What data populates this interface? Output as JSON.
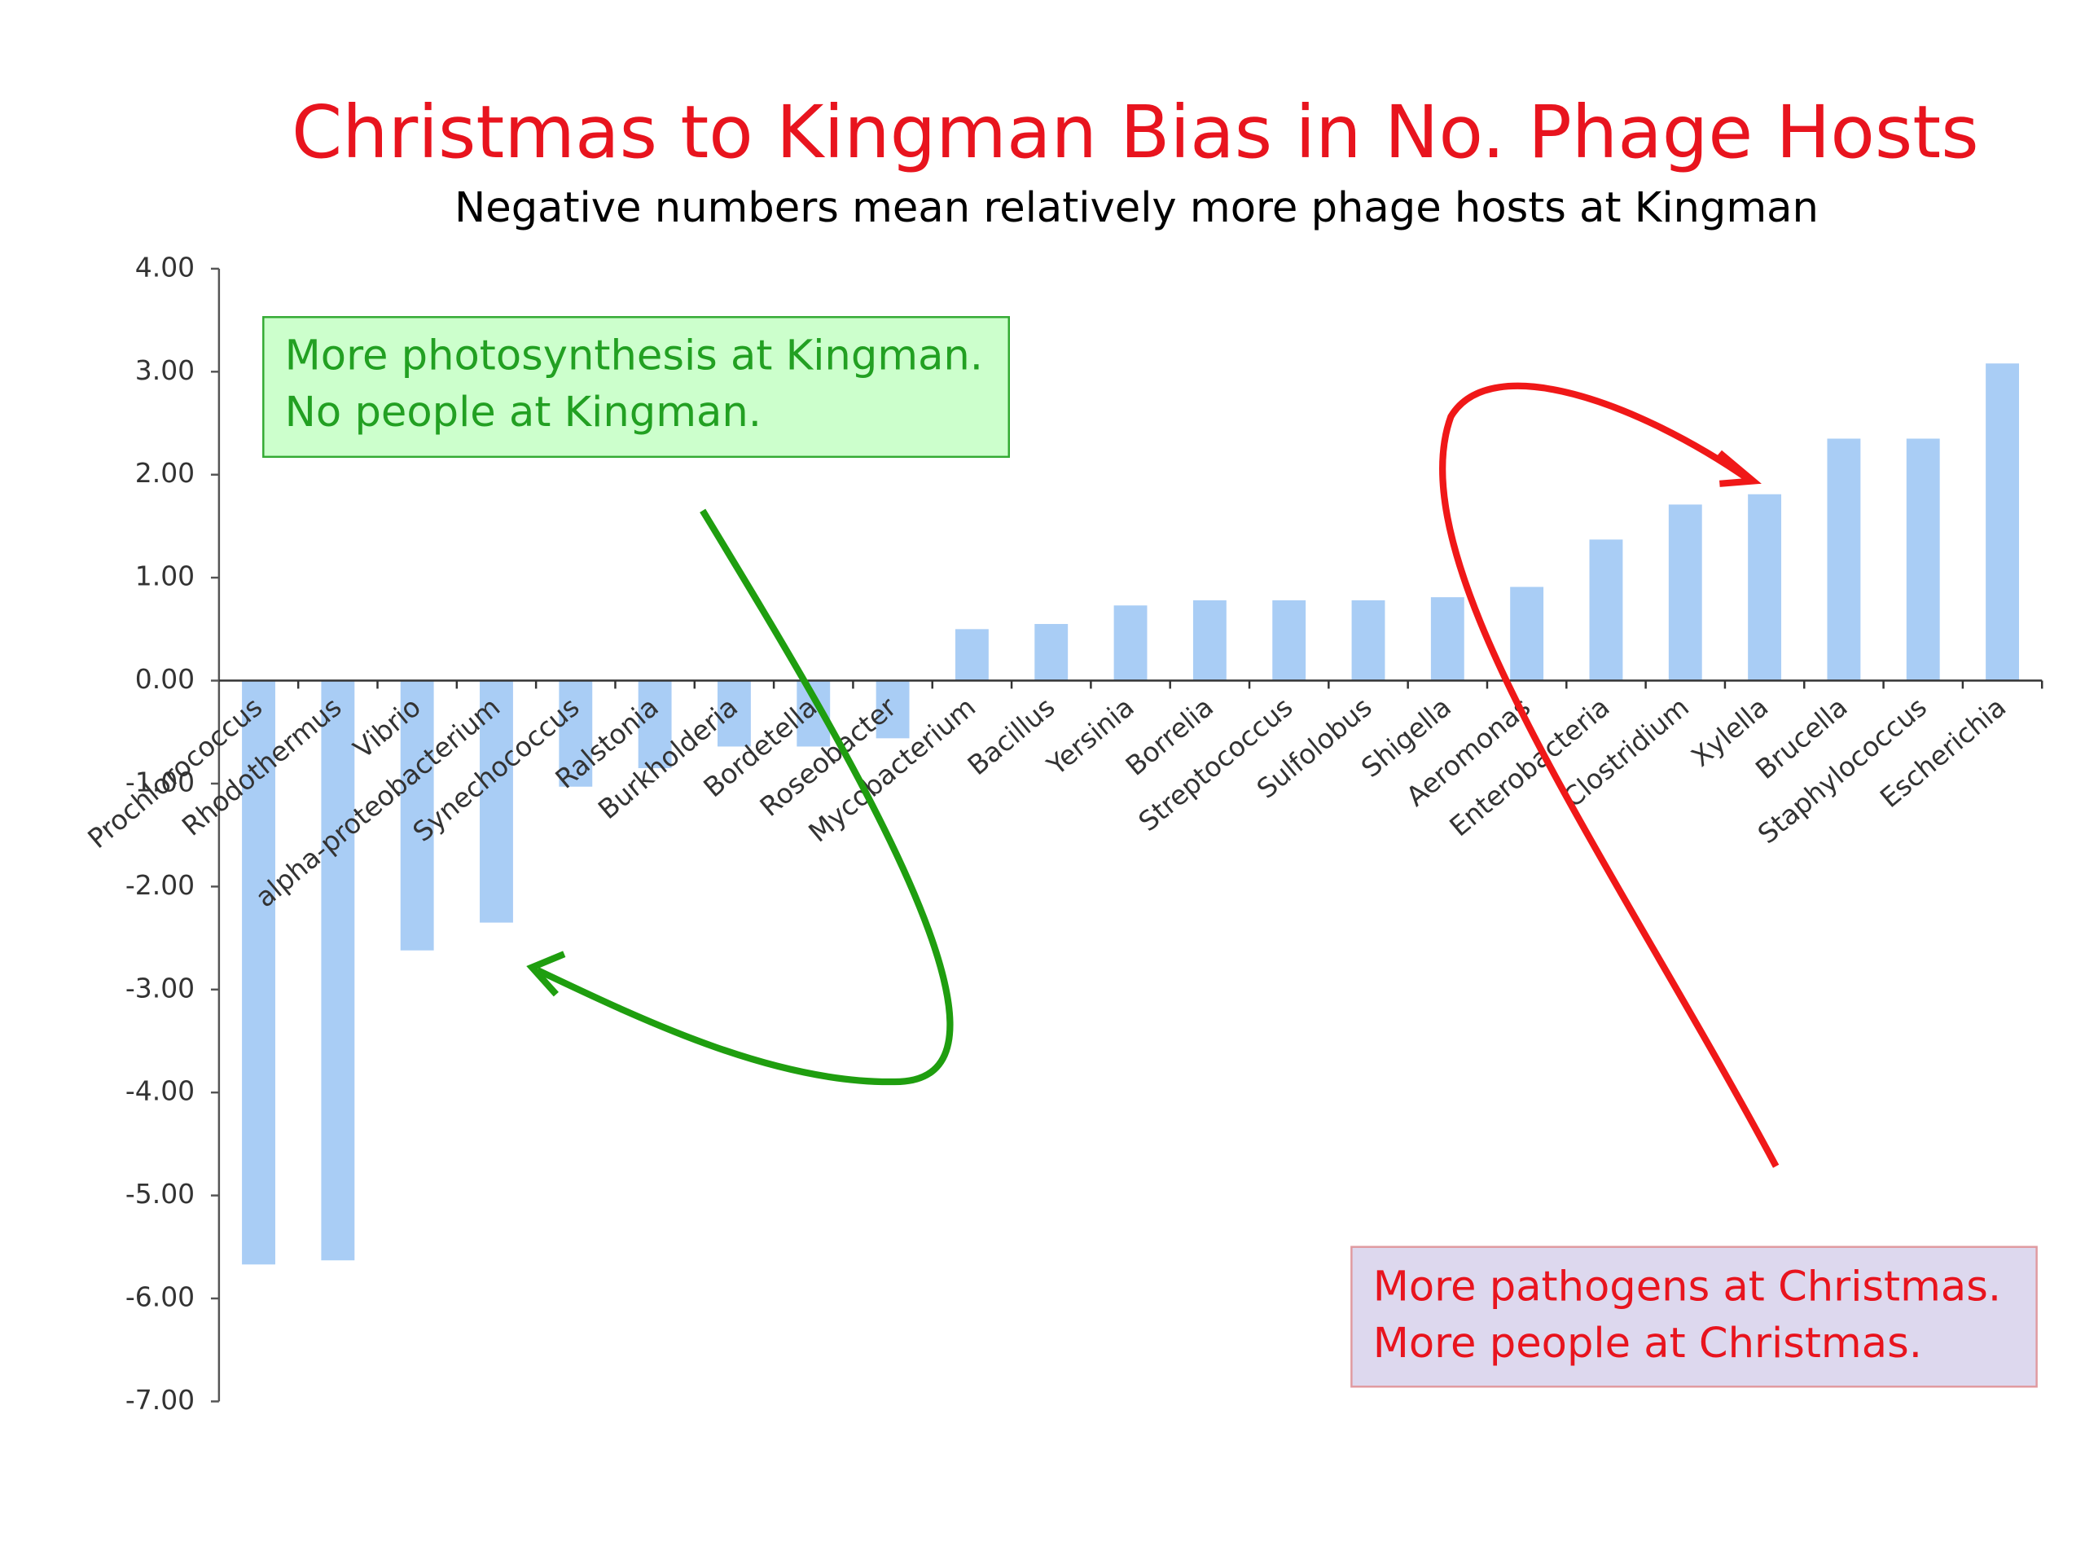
{
  "chart_data": {
    "type": "bar",
    "title": "Christmas to Kingman Bias in No. Phage Hosts",
    "subtitle": "Negative numbers mean relatively more phage hosts at Kingman",
    "categories": [
      "Prochlorococcus",
      "Rhodothermus",
      "Vibrio",
      "alpha-proteobacterium",
      "Synechococcus",
      "Ralstonia",
      "Burkholderia",
      "Bordetella",
      "Roseobacter",
      "Mycobacterium",
      "Bacillus",
      "Yersinia",
      "Borrelia",
      "Streptococcus",
      "Sulfolobus",
      "Shigella",
      "Aeromonas",
      "Enterobacteria",
      "Clostridium",
      "Xylella",
      "Brucella",
      "Staphylococcus",
      "Escherichia"
    ],
    "values": [
      -5.67,
      -5.63,
      -2.62,
      -2.35,
      -1.03,
      -0.85,
      -0.64,
      -0.64,
      -0.56,
      0.5,
      0.55,
      0.73,
      0.78,
      0.78,
      0.78,
      0.81,
      0.91,
      1.37,
      1.71,
      1.81,
      2.35,
      2.35,
      3.08
    ],
    "color": "#a9cdf5",
    "ylim": [
      -7,
      4
    ],
    "yticks": [
      {
        "value": -7,
        "label": "-7.00"
      },
      {
        "value": -6,
        "label": "-6.00"
      },
      {
        "value": -5,
        "label": "-5.00"
      },
      {
        "value": -4,
        "label": "-4.00"
      },
      {
        "value": -3,
        "label": "-3.00"
      },
      {
        "value": -2,
        "label": "-2.00"
      },
      {
        "value": -1,
        "label": "-1.00"
      },
      {
        "value": 0,
        "label": "0.00"
      },
      {
        "value": 1,
        "label": "1.00"
      },
      {
        "value": 2,
        "label": "2.00"
      },
      {
        "value": 3,
        "label": "3.00"
      },
      {
        "value": 4,
        "label": "4.00"
      }
    ],
    "annotations": [
      [
        "More photosynthesis at Kingman.",
        "No people at Kingman."
      ],
      [
        "More pathogens at Christmas.",
        "More people at Christmas."
      ]
    ]
  }
}
